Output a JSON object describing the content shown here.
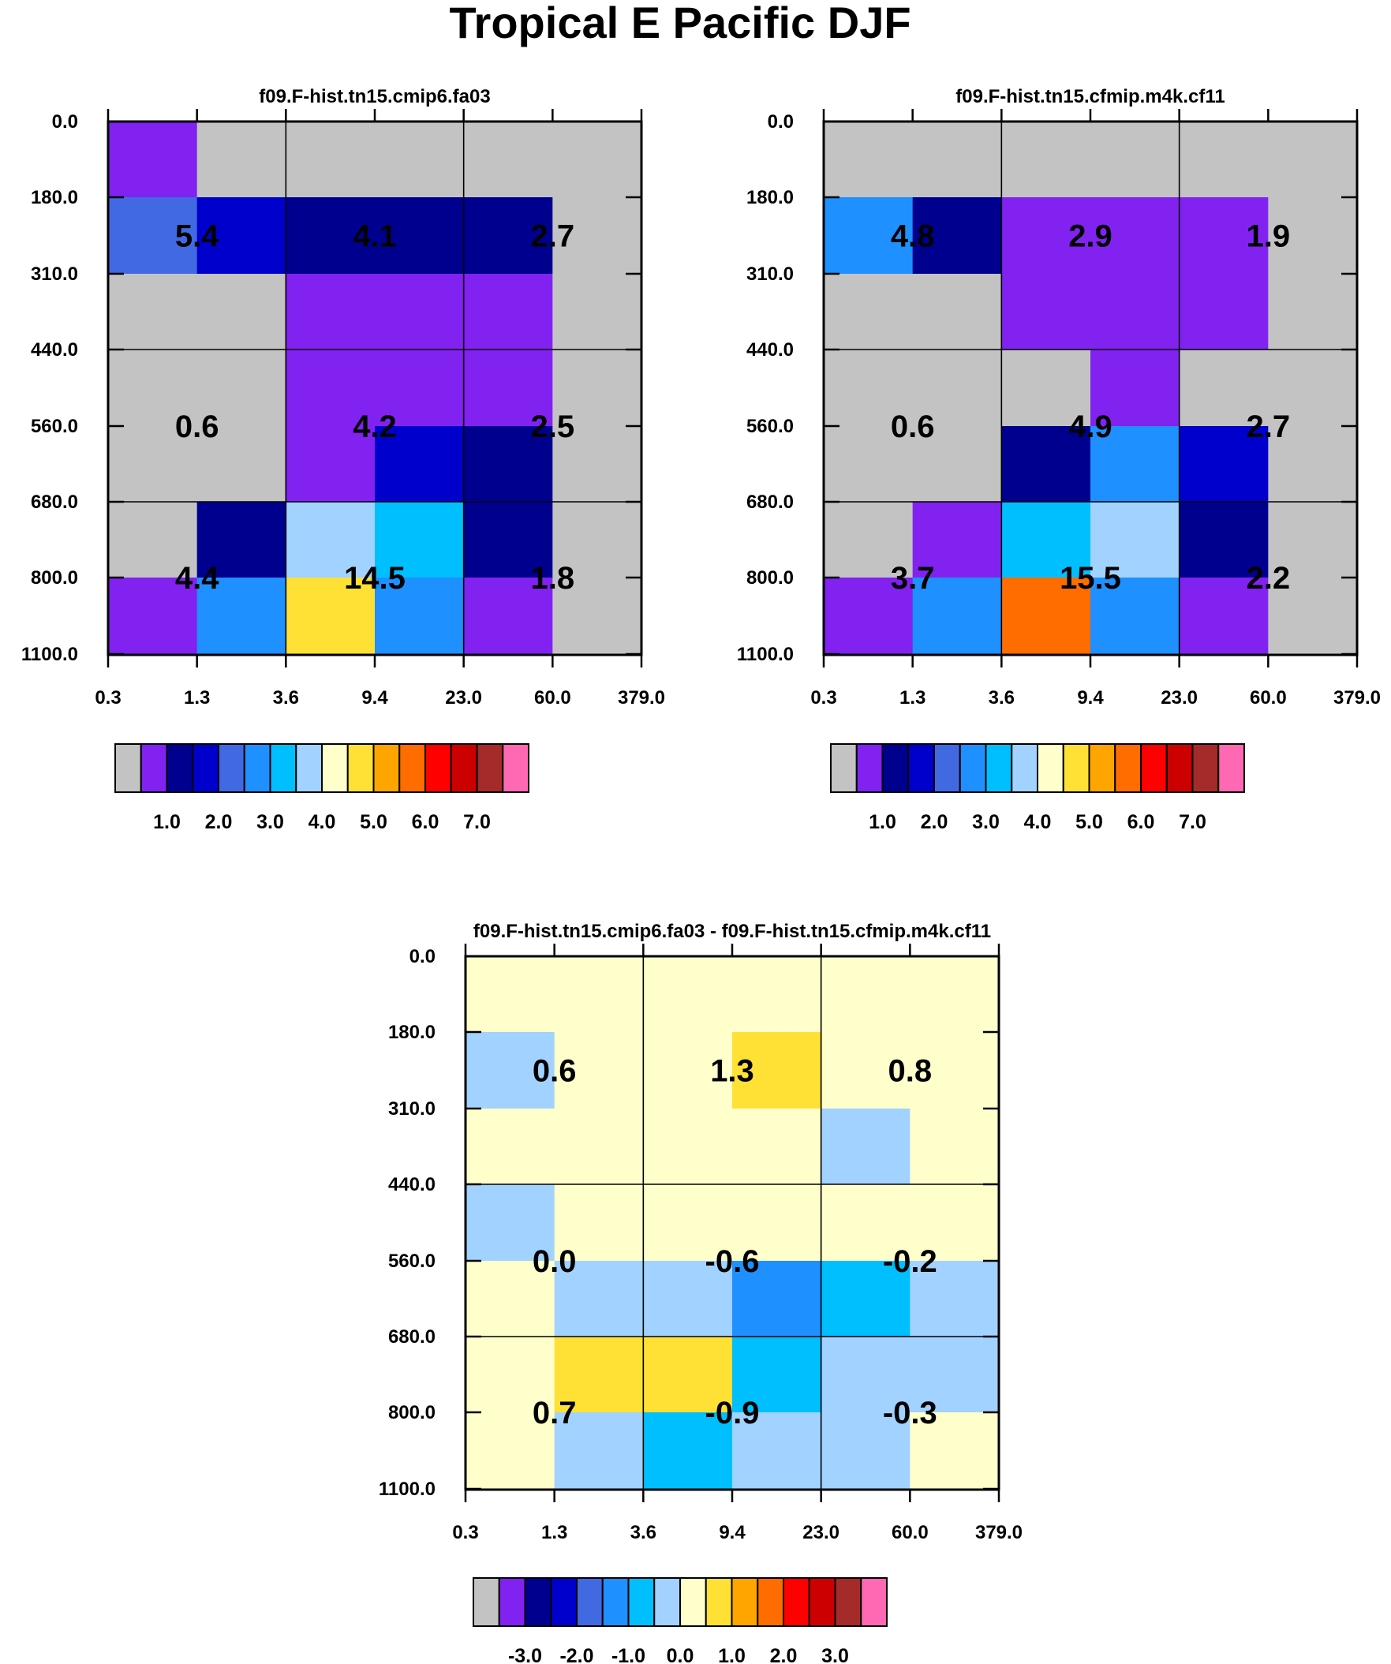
{
  "title": "Tropical E Pacific DJF",
  "palette": [
    "#c3c3c3",
    "#8122f0",
    "#00008f",
    "#0000cc",
    "#4169e1",
    "#1e90ff",
    "#00bfff",
    "#a2d2ff",
    "#ffffcc",
    "#ffe135",
    "#ffa500",
    "#ff6d00",
    "#ff0000",
    "#cd0000",
    "#a52a2a",
    "#ff69b4"
  ],
  "chart_data": [
    {
      "type": "heatmap",
      "title": "f09.F-hist.tn15.cmip6.fa03",
      "x_ticks": [
        "0.3",
        "1.3",
        "3.6",
        "9.4",
        "23.0",
        "60.0",
        "379.0"
      ],
      "y_ticks": [
        "0.0",
        "180.0",
        "310.0",
        "440.0",
        "560.0",
        "680.0",
        "800.0",
        "1100.0"
      ],
      "cells": [
        [
          1,
          0,
          0,
          0,
          0,
          0
        ],
        [
          4,
          3,
          2,
          2,
          2,
          0
        ],
        [
          0,
          0,
          1,
          1,
          1,
          0
        ],
        [
          0,
          0,
          1,
          1,
          1,
          0
        ],
        [
          0,
          0,
          1,
          3,
          2,
          0
        ],
        [
          0,
          2,
          7,
          6,
          2,
          0
        ],
        [
          1,
          5,
          9,
          5,
          1,
          0
        ]
      ],
      "labels": [
        [
          "5.4",
          "4.1",
          "2.7"
        ],
        [
          "0.6",
          "4.2",
          "2.5"
        ],
        [
          "4.4",
          "14.5",
          "1.8"
        ]
      ],
      "colorbar_labels": [
        "1.0",
        "2.0",
        "3.0",
        "4.0",
        "5.0",
        "6.0",
        "7.0"
      ]
    },
    {
      "type": "heatmap",
      "title": "f09.F-hist.tn15.cfmip.m4k.cf11",
      "x_ticks": [
        "0.3",
        "1.3",
        "3.6",
        "9.4",
        "23.0",
        "60.0",
        "379.0"
      ],
      "y_ticks": [
        "0.0",
        "180.0",
        "310.0",
        "440.0",
        "560.0",
        "680.0",
        "800.0",
        "1100.0"
      ],
      "cells": [
        [
          0,
          0,
          0,
          0,
          0,
          0
        ],
        [
          5,
          2,
          1,
          1,
          1,
          0
        ],
        [
          0,
          0,
          1,
          1,
          1,
          0
        ],
        [
          0,
          0,
          0,
          1,
          0,
          0
        ],
        [
          0,
          0,
          2,
          5,
          3,
          0
        ],
        [
          0,
          1,
          6,
          7,
          2,
          0
        ],
        [
          1,
          5,
          11,
          5,
          1,
          0
        ]
      ],
      "labels": [
        [
          "4.8",
          "2.9",
          "1.9"
        ],
        [
          "0.6",
          "4.9",
          "2.7"
        ],
        [
          "3.7",
          "15.5",
          "2.2"
        ]
      ],
      "colorbar_labels": [
        "1.0",
        "2.0",
        "3.0",
        "4.0",
        "5.0",
        "6.0",
        "7.0"
      ]
    },
    {
      "type": "heatmap",
      "title": "f09.F-hist.tn15.cmip6.fa03 - f09.F-hist.tn15.cfmip.m4k.cf11",
      "x_ticks": [
        "0.3",
        "1.3",
        "3.6",
        "9.4",
        "23.0",
        "60.0",
        "379.0"
      ],
      "y_ticks": [
        "0.0",
        "180.0",
        "310.0",
        "440.0",
        "560.0",
        "680.0",
        "800.0",
        "1100.0"
      ],
      "cells": [
        [
          8,
          8,
          8,
          8,
          8,
          8
        ],
        [
          7,
          8,
          8,
          9,
          8,
          8
        ],
        [
          8,
          8,
          8,
          8,
          7,
          8
        ],
        [
          7,
          8,
          8,
          8,
          8,
          8
        ],
        [
          8,
          7,
          7,
          5,
          6,
          7
        ],
        [
          8,
          9,
          9,
          6,
          7,
          7
        ],
        [
          8,
          7,
          6,
          7,
          7,
          8
        ]
      ],
      "labels": [
        [
          "0.6",
          "1.3",
          "0.8"
        ],
        [
          "0.0",
          "-0.6",
          "-0.2"
        ],
        [
          "0.7",
          "-0.9",
          "-0.3"
        ]
      ],
      "colorbar_labels": [
        "-3.0",
        "-2.0",
        "-1.0",
        "0.0",
        "1.0",
        "2.0",
        "3.0"
      ]
    }
  ]
}
